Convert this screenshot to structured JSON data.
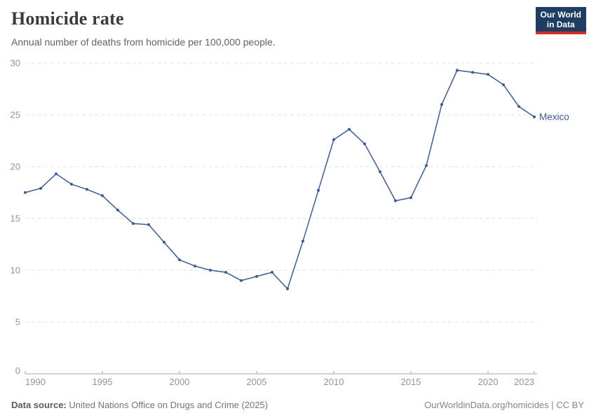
{
  "header": {
    "title": "Homicide rate",
    "subtitle": "Annual number of deaths from homicide per 100,000 people."
  },
  "logo": {
    "line1": "Our World",
    "line2": "in Data",
    "bg_color": "#1d3d63",
    "bar_color": "#d12d29"
  },
  "footer": {
    "source_label": "Data source:",
    "source_value": "United Nations Office on Drugs and Crime (2025)",
    "attribution": "OurWorldinData.org/homicides | CC BY"
  },
  "chart_data": {
    "type": "line",
    "title": "Homicide rate",
    "subtitle": "Annual number of deaths from homicide per 100,000 people.",
    "xlabel": "",
    "ylabel": "",
    "xlim": [
      1990,
      2023
    ],
    "ylim": [
      0,
      30
    ],
    "x_ticks": [
      1990,
      1995,
      2000,
      2005,
      2010,
      2015,
      2020,
      2023
    ],
    "y_ticks": [
      0,
      5,
      10,
      15,
      20,
      25,
      30
    ],
    "grid": "horizontal-dashed",
    "legend_position": "end-of-line-label",
    "series": [
      {
        "name": "Mexico",
        "color": "#3e5a92",
        "x": [
          1990,
          1991,
          1992,
          1993,
          1994,
          1995,
          1996,
          1997,
          1998,
          1999,
          2000,
          2001,
          2002,
          2003,
          2004,
          2005,
          2006,
          2007,
          2008,
          2009,
          2010,
          2011,
          2012,
          2013,
          2014,
          2015,
          2016,
          2017,
          2018,
          2019,
          2020,
          2021,
          2022,
          2023
        ],
        "values": [
          17.5,
          17.9,
          19.3,
          18.3,
          17.8,
          17.2,
          15.8,
          14.5,
          14.4,
          12.7,
          11.0,
          10.4,
          10.0,
          9.8,
          9.0,
          9.4,
          9.8,
          8.2,
          12.8,
          17.7,
          22.6,
          23.6,
          22.2,
          19.5,
          16.7,
          17.0,
          20.1,
          26.0,
          29.3,
          29.1,
          28.9,
          27.9,
          25.8,
          24.8
        ]
      }
    ]
  },
  "theme": {
    "grid_color": "#e0e0e0",
    "axis_color": "#a5a5a5",
    "tick_text_color": "#949494"
  }
}
